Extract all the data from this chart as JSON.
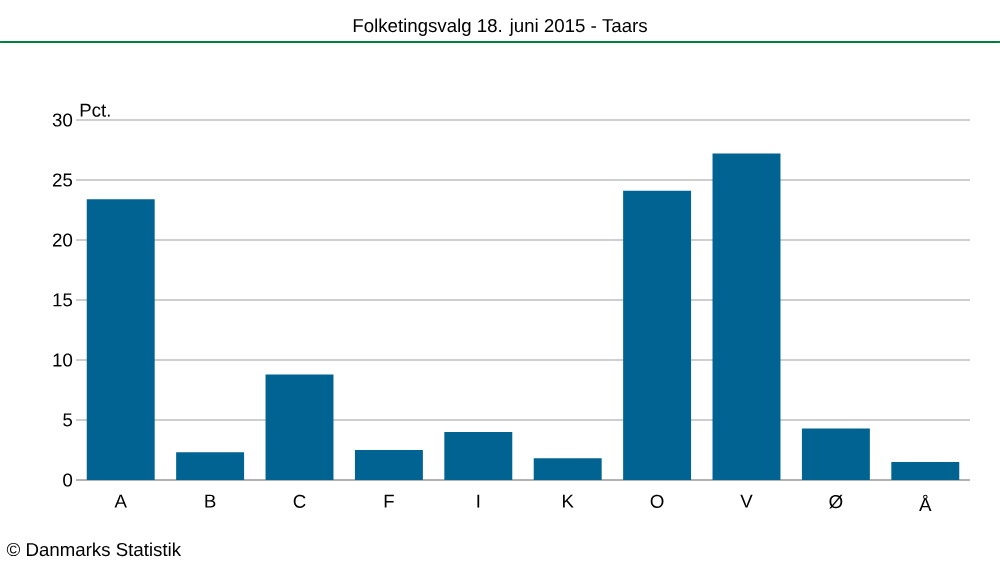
{
  "chart_data": {
    "type": "bar",
    "title": "Folketingsvalg 18. juni 2015 - Taars",
    "ylabel": "Pct.",
    "categories": [
      "A",
      "B",
      "C",
      "F",
      "I",
      "K",
      "O",
      "V",
      "Ø",
      "Å"
    ],
    "values": [
      23.4,
      2.3,
      8.8,
      2.5,
      4.0,
      1.8,
      24.1,
      27.2,
      4.3,
      1.5
    ],
    "color": "#006392",
    "ylim": [
      0,
      30
    ],
    "yticks": [
      0,
      5,
      10,
      15,
      20,
      25,
      30
    ],
    "grid": "y",
    "annotations": [
      "© Danmarks Statistik"
    ]
  }
}
